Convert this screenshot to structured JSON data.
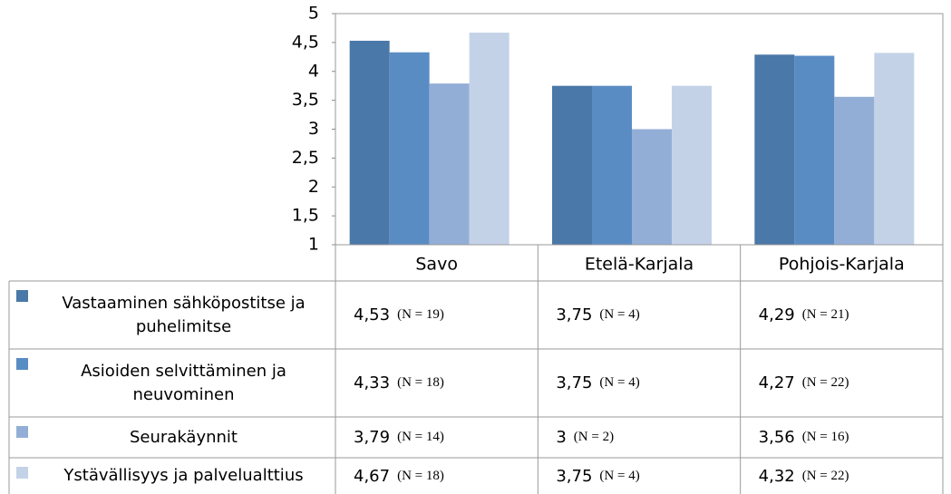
{
  "chart_data": {
    "type": "bar",
    "categories": [
      "Savo",
      "Etelä-Karjala",
      "Pohjois-Karjala"
    ],
    "series": [
      {
        "name": "Vastaaminen sähköpostitse ja puhelimitse",
        "color": "#4a78a8",
        "values": [
          4.53,
          3.75,
          4.29
        ],
        "value_labels": [
          "4,53",
          "3,75",
          "4,29"
        ],
        "n_labels": [
          "(N = 19)",
          "(N = 4)",
          "(N = 21)"
        ]
      },
      {
        "name": "Asioiden selvittäminen ja neuvominen",
        "color": "#5a8cc4",
        "values": [
          4.33,
          3.75,
          4.27
        ],
        "value_labels": [
          "4,33",
          "3,75",
          "4,27"
        ],
        "n_labels": [
          "(N = 18)",
          "(N = 4)",
          "(N = 22)"
        ]
      },
      {
        "name": "Seurakäynnit",
        "color": "#93aed6",
        "values": [
          3.79,
          3,
          3.56
        ],
        "value_labels": [
          "3,79",
          "3",
          "3,56"
        ],
        "n_labels": [
          "(N = 14)",
          "(N = 2)",
          "(N = 16)"
        ]
      },
      {
        "name": "Ystävällisyys ja palvelualttius",
        "color": "#c4d2e8",
        "values": [
          4.67,
          3.75,
          4.32
        ],
        "value_labels": [
          "4,67",
          "3,75",
          "4,32"
        ],
        "n_labels": [
          "(N = 18)",
          "(N = 4)",
          "(N = 22)"
        ]
      }
    ],
    "ylim": [
      1,
      5
    ],
    "yticks": [
      1,
      {
        "value": 1.5,
        "label": "1,5"
      },
      2,
      {
        "value": 2.5,
        "label": "2,5"
      },
      3,
      {
        "value": 3.5,
        "label": "3,5"
      },
      4,
      {
        "value": 4.5,
        "label": "4,5"
      },
      5
    ],
    "grid": false
  }
}
